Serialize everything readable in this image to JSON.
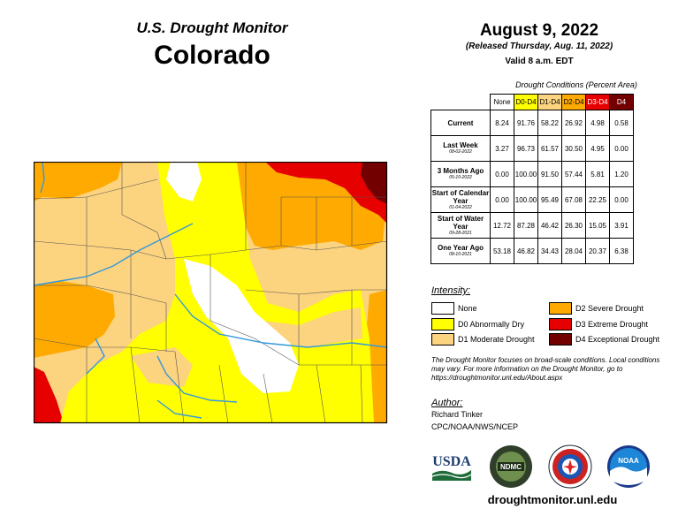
{
  "header": {
    "subtitle": "U.S. Drought Monitor",
    "state": "Colorado",
    "date": "August 9, 2022",
    "released": "(Released Thursday, Aug. 11, 2022)",
    "valid": "Valid 8 a.m. EDT"
  },
  "table": {
    "caption": "Drought Conditions (Percent Area)",
    "columns": [
      "None",
      "D0-D4",
      "D1-D4",
      "D2-D4",
      "D3-D4",
      "D4"
    ],
    "column_colors": [
      "#ffffff",
      "#ffff00",
      "#fcd37f",
      "#ffaa00",
      "#e60000",
      "#730000"
    ],
    "rows": [
      {
        "label": "Current",
        "date": "",
        "values": [
          "8.24",
          "91.76",
          "58.22",
          "26.92",
          "4.98",
          "0.58"
        ]
      },
      {
        "label": "Last Week",
        "date": "08-02-2022",
        "values": [
          "3.27",
          "96.73",
          "61.57",
          "30.50",
          "4.95",
          "0.00"
        ]
      },
      {
        "label": "3 Months Ago",
        "date": "05-10-2022",
        "values": [
          "0.00",
          "100.00",
          "91.50",
          "57.44",
          "5.81",
          "1.20"
        ]
      },
      {
        "label": "Start of Calendar Year",
        "date": "01-04-2022",
        "values": [
          "0.00",
          "100.00",
          "95.49",
          "67.08",
          "22.25",
          "0.00"
        ]
      },
      {
        "label": "Start of Water Year",
        "date": "09-28-2021",
        "values": [
          "12.72",
          "87.28",
          "46.42",
          "26.30",
          "15.05",
          "3.91"
        ]
      },
      {
        "label": "One Year Ago",
        "date": "08-10-2021",
        "values": [
          "53.18",
          "46.82",
          "34.43",
          "28.04",
          "20.37",
          "6.38"
        ]
      }
    ]
  },
  "legend": {
    "title": "Intensity:",
    "items": [
      {
        "label": "None",
        "color": "#ffffff"
      },
      {
        "label": "D0 Abnormally Dry",
        "color": "#ffff00"
      },
      {
        "label": "D1 Moderate Drought",
        "color": "#fcd37f"
      },
      {
        "label": "D2 Severe Drought",
        "color": "#ffaa00"
      },
      {
        "label": "D3 Extreme Drought",
        "color": "#e60000"
      },
      {
        "label": "D4 Exceptional Drought",
        "color": "#730000"
      }
    ]
  },
  "note": "The Drought Monitor focuses on broad-scale conditions. Local conditions may vary. For more information on the Drought Monitor, go to https://droughtmonitor.unl.edu/About.aspx",
  "author": {
    "title": "Author:",
    "name": "Richard Tinker",
    "org": "CPC/NOAA/NWS/NCEP"
  },
  "logos": {
    "usda": "USDA",
    "ndmc": "NDMC",
    "noaa": "NOAA"
  },
  "website": "droughtmonitor.unl.edu"
}
